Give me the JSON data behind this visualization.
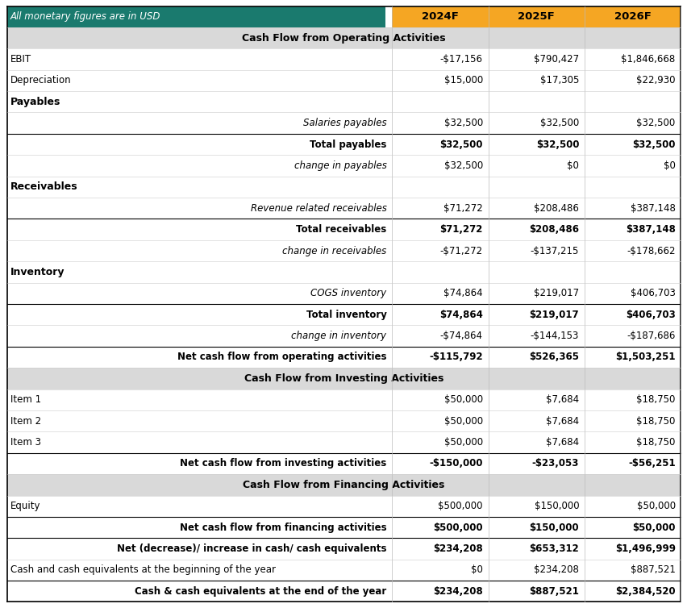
{
  "header_bg": "#1a7a6e",
  "header_text_color": "#ffffff",
  "section_bg": "#d9d9d9",
  "section_text_color": "#000000",
  "col_header_bg": "#f5a623",
  "col_header_text": "#000000",
  "white_bg": "#ffffff",
  "rows": [
    {
      "label": "All monetary figures are in USD",
      "values": [
        "2024F",
        "2025F",
        "2026F"
      ],
      "type": "header"
    },
    {
      "label": "Cash Flow from Operating Activities",
      "values": [
        "",
        "",
        ""
      ],
      "type": "section"
    },
    {
      "label": "EBIT",
      "values": [
        "-$17,156",
        "$790,427",
        "$1,846,668"
      ],
      "type": "normal"
    },
    {
      "label": "Depreciation",
      "values": [
        "$15,000",
        "$17,305",
        "$22,930"
      ],
      "type": "normal"
    },
    {
      "label": "Payables",
      "values": [
        "",
        "",
        ""
      ],
      "type": "bold_left"
    },
    {
      "label": "Salaries payables",
      "values": [
        "$32,500",
        "$32,500",
        "$32,500"
      ],
      "type": "italic_right"
    },
    {
      "label": "Total payables",
      "values": [
        "$32,500",
        "$32,500",
        "$32,500"
      ],
      "type": "bold_right",
      "line_above": true
    },
    {
      "label": "change in payables",
      "values": [
        "$32,500",
        "$0",
        "$0"
      ],
      "type": "italic_right"
    },
    {
      "label": "Receivables",
      "values": [
        "",
        "",
        ""
      ],
      "type": "bold_left"
    },
    {
      "label": "Revenue related receivables",
      "values": [
        "$71,272",
        "$208,486",
        "$387,148"
      ],
      "type": "italic_right"
    },
    {
      "label": "Total receivables",
      "values": [
        "$71,272",
        "$208,486",
        "$387,148"
      ],
      "type": "bold_right",
      "line_above": true
    },
    {
      "label": "change in receivables",
      "values": [
        "-$71,272",
        "-$137,215",
        "-$178,662"
      ],
      "type": "italic_right"
    },
    {
      "label": "Inventory",
      "values": [
        "",
        "",
        ""
      ],
      "type": "bold_left"
    },
    {
      "label": "COGS inventory",
      "values": [
        "$74,864",
        "$219,017",
        "$406,703"
      ],
      "type": "italic_right"
    },
    {
      "label": "Total inventory",
      "values": [
        "$74,864",
        "$219,017",
        "$406,703"
      ],
      "type": "bold_right",
      "line_above": true
    },
    {
      "label": "change in inventory",
      "values": [
        "-$74,864",
        "-$144,153",
        "-$187,686"
      ],
      "type": "italic_right"
    },
    {
      "label": "Net cash flow from operating activities",
      "values": [
        "-$115,792",
        "$526,365",
        "$1,503,251"
      ],
      "type": "bold_right",
      "line_above": true
    },
    {
      "label": "Cash Flow from Investing Activities",
      "values": [
        "",
        "",
        ""
      ],
      "type": "section"
    },
    {
      "label": "Item 1",
      "values": [
        "$50,000",
        "$7,684",
        "$18,750"
      ],
      "type": "normal"
    },
    {
      "label": "Item 2",
      "values": [
        "$50,000",
        "$7,684",
        "$18,750"
      ],
      "type": "normal"
    },
    {
      "label": "Item 3",
      "values": [
        "$50,000",
        "$7,684",
        "$18,750"
      ],
      "type": "normal"
    },
    {
      "label": "Net cash flow from investing activities",
      "values": [
        "-$150,000",
        "-$23,053",
        "-$56,251"
      ],
      "type": "bold_right",
      "line_above": true
    },
    {
      "label": "Cash Flow from Financing Activities",
      "values": [
        "",
        "",
        ""
      ],
      "type": "section"
    },
    {
      "label": "Equity",
      "values": [
        "$500,000",
        "$150,000",
        "$50,000"
      ],
      "type": "normal"
    },
    {
      "label": "Net cash flow from financing activities",
      "values": [
        "$500,000",
        "$150,000",
        "$50,000"
      ],
      "type": "bold_right",
      "line_above": true
    },
    {
      "label": "Net (decrease)/ increase in cash/ cash equivalents",
      "values": [
        "$234,208",
        "$653,312",
        "$1,496,999"
      ],
      "type": "bold_right",
      "line_above": true
    },
    {
      "label": "Cash and cash equivalents at the beginning of the year",
      "values": [
        "$0",
        "$234,208",
        "$887,521"
      ],
      "type": "normal_right"
    },
    {
      "label": "Cash & cash equivalents at the end of the year",
      "values": [
        "$234,208",
        "$887,521",
        "$2,384,520"
      ],
      "type": "bold_right",
      "line_above": true
    }
  ],
  "figsize": [
    8.53,
    7.54
  ],
  "dpi": 100
}
